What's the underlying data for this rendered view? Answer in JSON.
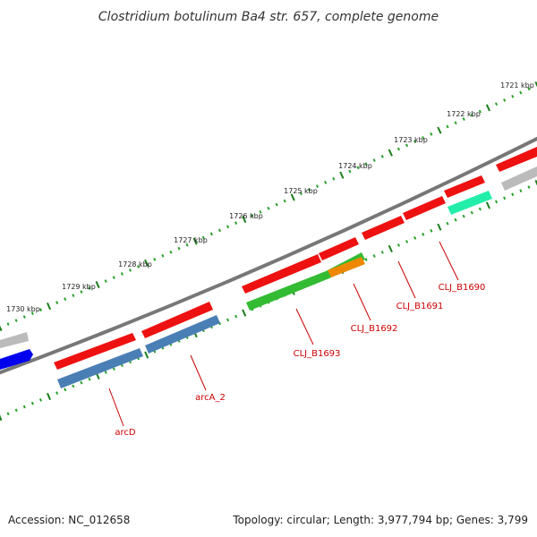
{
  "title": "Clostridium botulinum Ba4 str. 657, complete genome",
  "footer": {
    "accession": "Accession: NC_012658",
    "summary": "Topology: circular; Length: 3,977,794 bp; Genes: 3,799"
  },
  "scale_labels": [
    "1721 kbp",
    "1722 kbp",
    "1723 kbp",
    "1724 kbp",
    "1725 kbp",
    "1726 kbp",
    "1727 kbp",
    "1728 kbp",
    "1729 kbp",
    "1730 kbp"
  ],
  "colors": {
    "backbone": "#777777",
    "tick_major": "#1a7f1a",
    "tick_minor": "#2aa02a",
    "cds_red": "#ee1111",
    "blast_blue": "#4a7fb5",
    "green": "#33bb33",
    "orange": "#ee8800",
    "teal": "#22eeaa",
    "grey": "#bbbbbb",
    "blue": "#0000ee",
    "label": "#cc0000"
  },
  "genes": [
    "arcD",
    "arcA_2",
    "CLJ_B1693",
    "CLJ_B1692",
    "CLJ_B1691",
    "CLJ_B1690"
  ]
}
